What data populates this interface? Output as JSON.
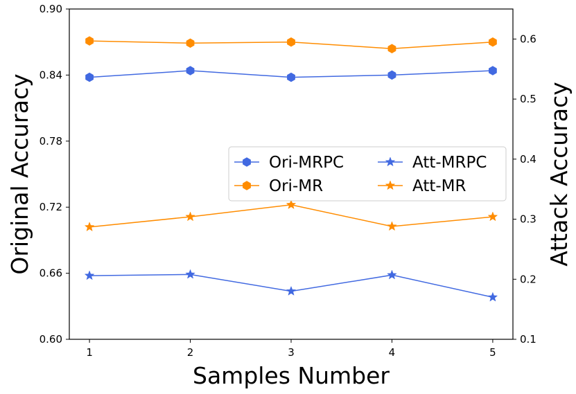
{
  "chart_data": {
    "type": "line",
    "x": [
      1,
      2,
      3,
      4,
      5
    ],
    "xlabel": "Samples Number",
    "ylabel_left": "Original Accuracy",
    "ylabel_right": "Attack Accuracy",
    "xticks": [
      "1",
      "2",
      "3",
      "4",
      "5"
    ],
    "yticks_left": [
      "0.60",
      "0.66",
      "0.72",
      "0.78",
      "0.84",
      "0.90"
    ],
    "yticks_right": [
      "0.1",
      "0.2",
      "0.3",
      "0.4",
      "0.5",
      "0.6"
    ],
    "ylim_left": [
      0.6,
      0.9
    ],
    "ylim_right": [
      0.1,
      0.65
    ],
    "legend_position": "center-right",
    "grid": false,
    "series": [
      {
        "name": "Ori-MRPC",
        "axis": "left",
        "marker": "hexagon",
        "color": "#4169e1",
        "values": [
          0.838,
          0.844,
          0.838,
          0.84,
          0.844
        ]
      },
      {
        "name": "Ori-MR",
        "axis": "left",
        "marker": "hexagon",
        "color": "#ff8c00",
        "values": [
          0.871,
          0.869,
          0.87,
          0.864,
          0.87
        ]
      },
      {
        "name": "Att-MRPC",
        "axis": "right",
        "marker": "star",
        "color": "#4169e1",
        "values": [
          0.206,
          0.208,
          0.18,
          0.207,
          0.17
        ]
      },
      {
        "name": "Att-MR",
        "axis": "right",
        "marker": "star",
        "color": "#ff8c00",
        "values": [
          0.287,
          0.304,
          0.324,
          0.288,
          0.304
        ]
      }
    ],
    "legend_order": [
      "Ori-MRPC",
      "Att-MRPC",
      "Ori-MR",
      "Att-MR"
    ]
  }
}
